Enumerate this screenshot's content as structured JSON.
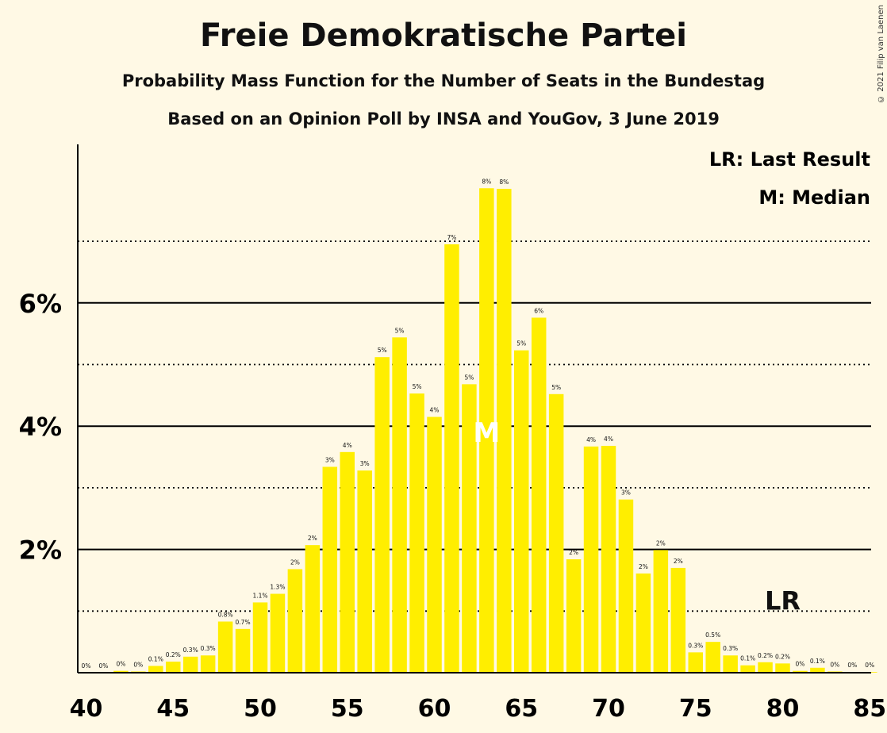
{
  "copyright": "© 2021 Filip van Laenen",
  "chart_data": {
    "type": "bar",
    "title": "Freie Demokratische Partei",
    "subtitle": "Probability Mass Function for the Number of Seats in the Bundestag",
    "subtitle2": "Based on an Opinion Poll by INSA and YouGov, 3 June 2019",
    "legend": [
      "LR: Last Result",
      "M: Median"
    ],
    "legend_position": "top-right",
    "x": [
      40,
      41,
      42,
      43,
      44,
      45,
      46,
      47,
      48,
      49,
      50,
      51,
      52,
      53,
      54,
      55,
      56,
      57,
      58,
      59,
      60,
      61,
      62,
      63,
      64,
      65,
      66,
      67,
      68,
      69,
      70,
      71,
      72,
      73,
      74,
      75,
      76,
      77,
      78,
      79,
      80,
      81,
      82,
      83,
      84,
      85
    ],
    "values": [
      0,
      0,
      0.0003,
      0.0002,
      0.0011,
      0.0018,
      0.0026,
      0.0028,
      0.0083,
      0.0071,
      0.0114,
      0.0128,
      0.0168,
      0.0207,
      0.0334,
      0.0358,
      0.0328,
      0.0512,
      0.0544,
      0.0453,
      0.0415,
      0.0695,
      0.0468,
      0.0786,
      0.0785,
      0.0523,
      0.0576,
      0.0452,
      0.0184,
      0.0367,
      0.0368,
      0.0281,
      0.0161,
      0.0199,
      0.017,
      0.0033,
      0.005,
      0.0028,
      0.0012,
      0.0017,
      0.0015,
      0.0003,
      0.0008,
      0.0002,
      0.0001,
      0.0001
    ],
    "labels": [
      "0%",
      "0%",
      "0%",
      "0%",
      "0.1%",
      "0.2%",
      "0.3%",
      "0.3%",
      "0.8%",
      "0.7%",
      "1.1%",
      "1.3%",
      "2%",
      "2%",
      "3%",
      "4%",
      "3%",
      "5%",
      "5%",
      "5%",
      "4%",
      "7%",
      "5%",
      "8%",
      "8%",
      "5%",
      "6%",
      "5%",
      "2%",
      "4%",
      "4%",
      "3%",
      "2%",
      "2%",
      "2%",
      "0.3%",
      "0.5%",
      "0.3%",
      "0.1%",
      "0.2%",
      "0.2%",
      "0%",
      "0.1%",
      "0%",
      "0%",
      "0%"
    ],
    "xticks": [
      40,
      45,
      50,
      55,
      60,
      65,
      70,
      75,
      80,
      85
    ],
    "xtick_labels": [
      "40",
      "45",
      "50",
      "55",
      "60",
      "65",
      "70",
      "75",
      "80",
      "85"
    ],
    "yticks_major": [
      0.02,
      0.04,
      0.06
    ],
    "ytick_labels": [
      "2%",
      "4%",
      "6%"
    ],
    "yticks_minor": [
      0.01,
      0.03,
      0.05,
      0.07
    ],
    "ylim": [
      0,
      0.085
    ],
    "xlim": [
      40,
      85
    ],
    "median": 63,
    "median_marker": "M",
    "last_result": 80,
    "last_result_marker": "LR",
    "bar_color": "#FFEE00",
    "xlabel": "",
    "ylabel": ""
  }
}
